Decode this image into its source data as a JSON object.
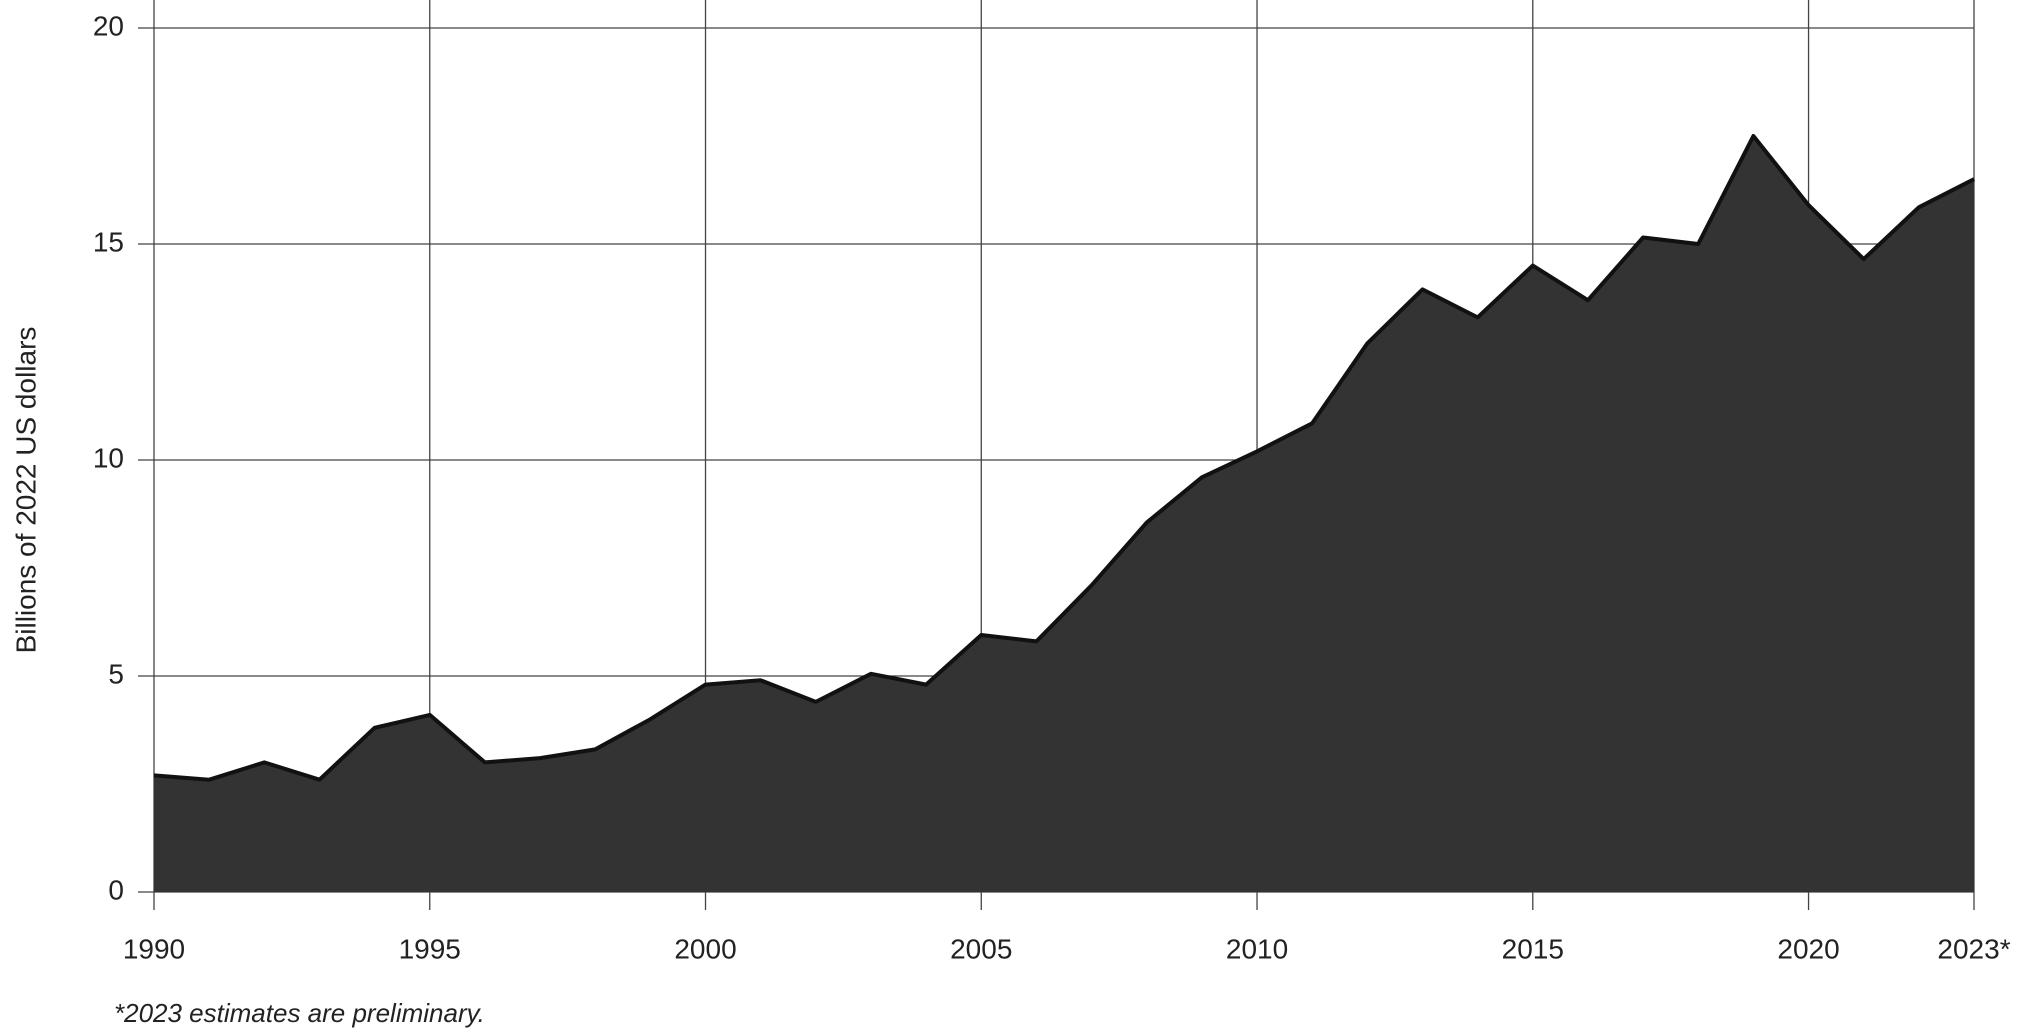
{
  "chart_data": {
    "type": "area",
    "y_label": "Billions of 2022 US dollars",
    "note": "*2023 estimates are preliminary.",
    "x": [
      1990,
      1991,
      1992,
      1993,
      1994,
      1995,
      1996,
      1997,
      1998,
      1999,
      2000,
      2001,
      2002,
      2003,
      2004,
      2005,
      2006,
      2007,
      2008,
      2009,
      2010,
      2011,
      2012,
      2013,
      2014,
      2015,
      2016,
      2017,
      2018,
      2019,
      2020,
      2021,
      2022,
      2023
    ],
    "values": [
      2.7,
      2.6,
      3.0,
      2.6,
      3.8,
      4.1,
      3.0,
      3.1,
      3.3,
      4.0,
      4.8,
      4.9,
      4.4,
      5.05,
      4.8,
      5.95,
      5.8,
      7.1,
      8.55,
      9.6,
      10.2,
      10.85,
      12.7,
      13.95,
      13.3,
      14.5,
      13.7,
      15.15,
      15.0,
      17.5,
      15.9,
      14.65,
      15.85,
      16.5
    ],
    "color": "#333333",
    "xlim": [
      1990,
      2023
    ],
    "xticks": [
      1990,
      1995,
      2000,
      2005,
      2010,
      2015,
      2020,
      {
        "value": 2023,
        "label": "2023*"
      }
    ],
    "ylim": [
      0,
      20
    ],
    "yticks": [
      0,
      5,
      10,
      15,
      20
    ],
    "grid": true
  }
}
